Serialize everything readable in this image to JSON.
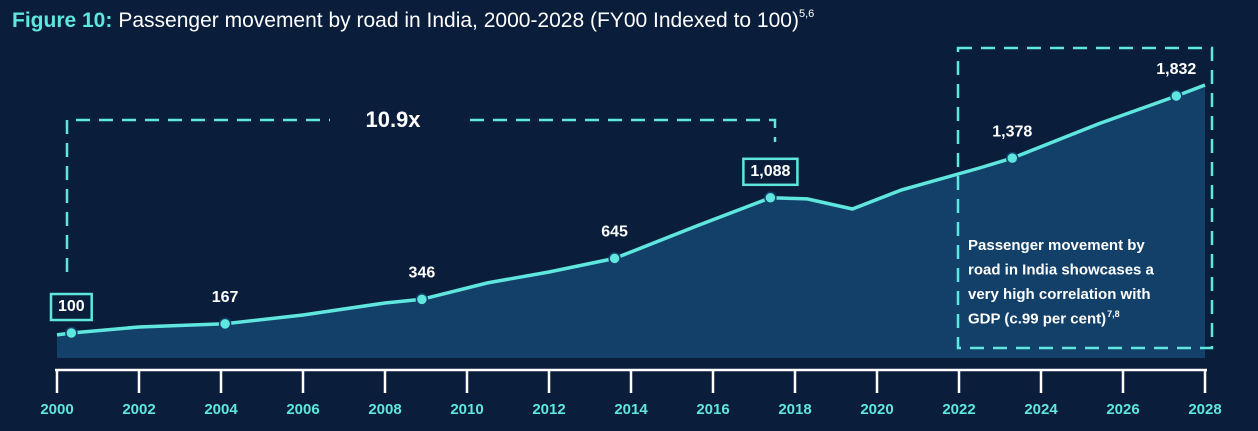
{
  "chart_data": {
    "type": "area",
    "title_prefix": "Figure 10:",
    "title": "Passenger movement by road in India, 2000-2028 (FY00 Indexed to 100)",
    "title_sup": "5,6",
    "x": [
      2000.0,
      2000.35,
      2002,
      2004.1,
      2006,
      2008,
      2008.9,
      2010.5,
      2012,
      2013.6,
      2015.6,
      2017.4,
      2018.3,
      2019.4,
      2020.6,
      2022.5,
      2023.3,
      2025.4,
      2027.3,
      2028
    ],
    "values": [
      86,
      100,
      144,
      167,
      232,
      319,
      346,
      466,
      546,
      645,
      882,
      1088,
      1080,
      1006,
      1146,
      1306,
      1378,
      1628,
      1832,
      1912
    ],
    "value_labels": [
      null,
      "100",
      null,
      "167",
      null,
      null,
      "346",
      null,
      null,
      "645",
      null,
      "1,088",
      null,
      null,
      null,
      null,
      "1,378",
      null,
      "1,832",
      null
    ],
    "color": "#5fe6df",
    "area_color": "#134069",
    "xlim": [
      2000,
      2028
    ],
    "xticks": [
      2000,
      2002,
      2004,
      2006,
      2008,
      2010,
      2012,
      2014,
      2016,
      2018,
      2020,
      2022,
      2024,
      2026,
      2028
    ],
    "ylim": [
      0,
      2000
    ],
    "annotation": "10.9x",
    "note_lines": [
      "Passenger movement by",
      "road in India showcases a",
      "very high correlation with",
      "GDP (c.99 per cent)"
    ],
    "note_sup": "7,8"
  }
}
